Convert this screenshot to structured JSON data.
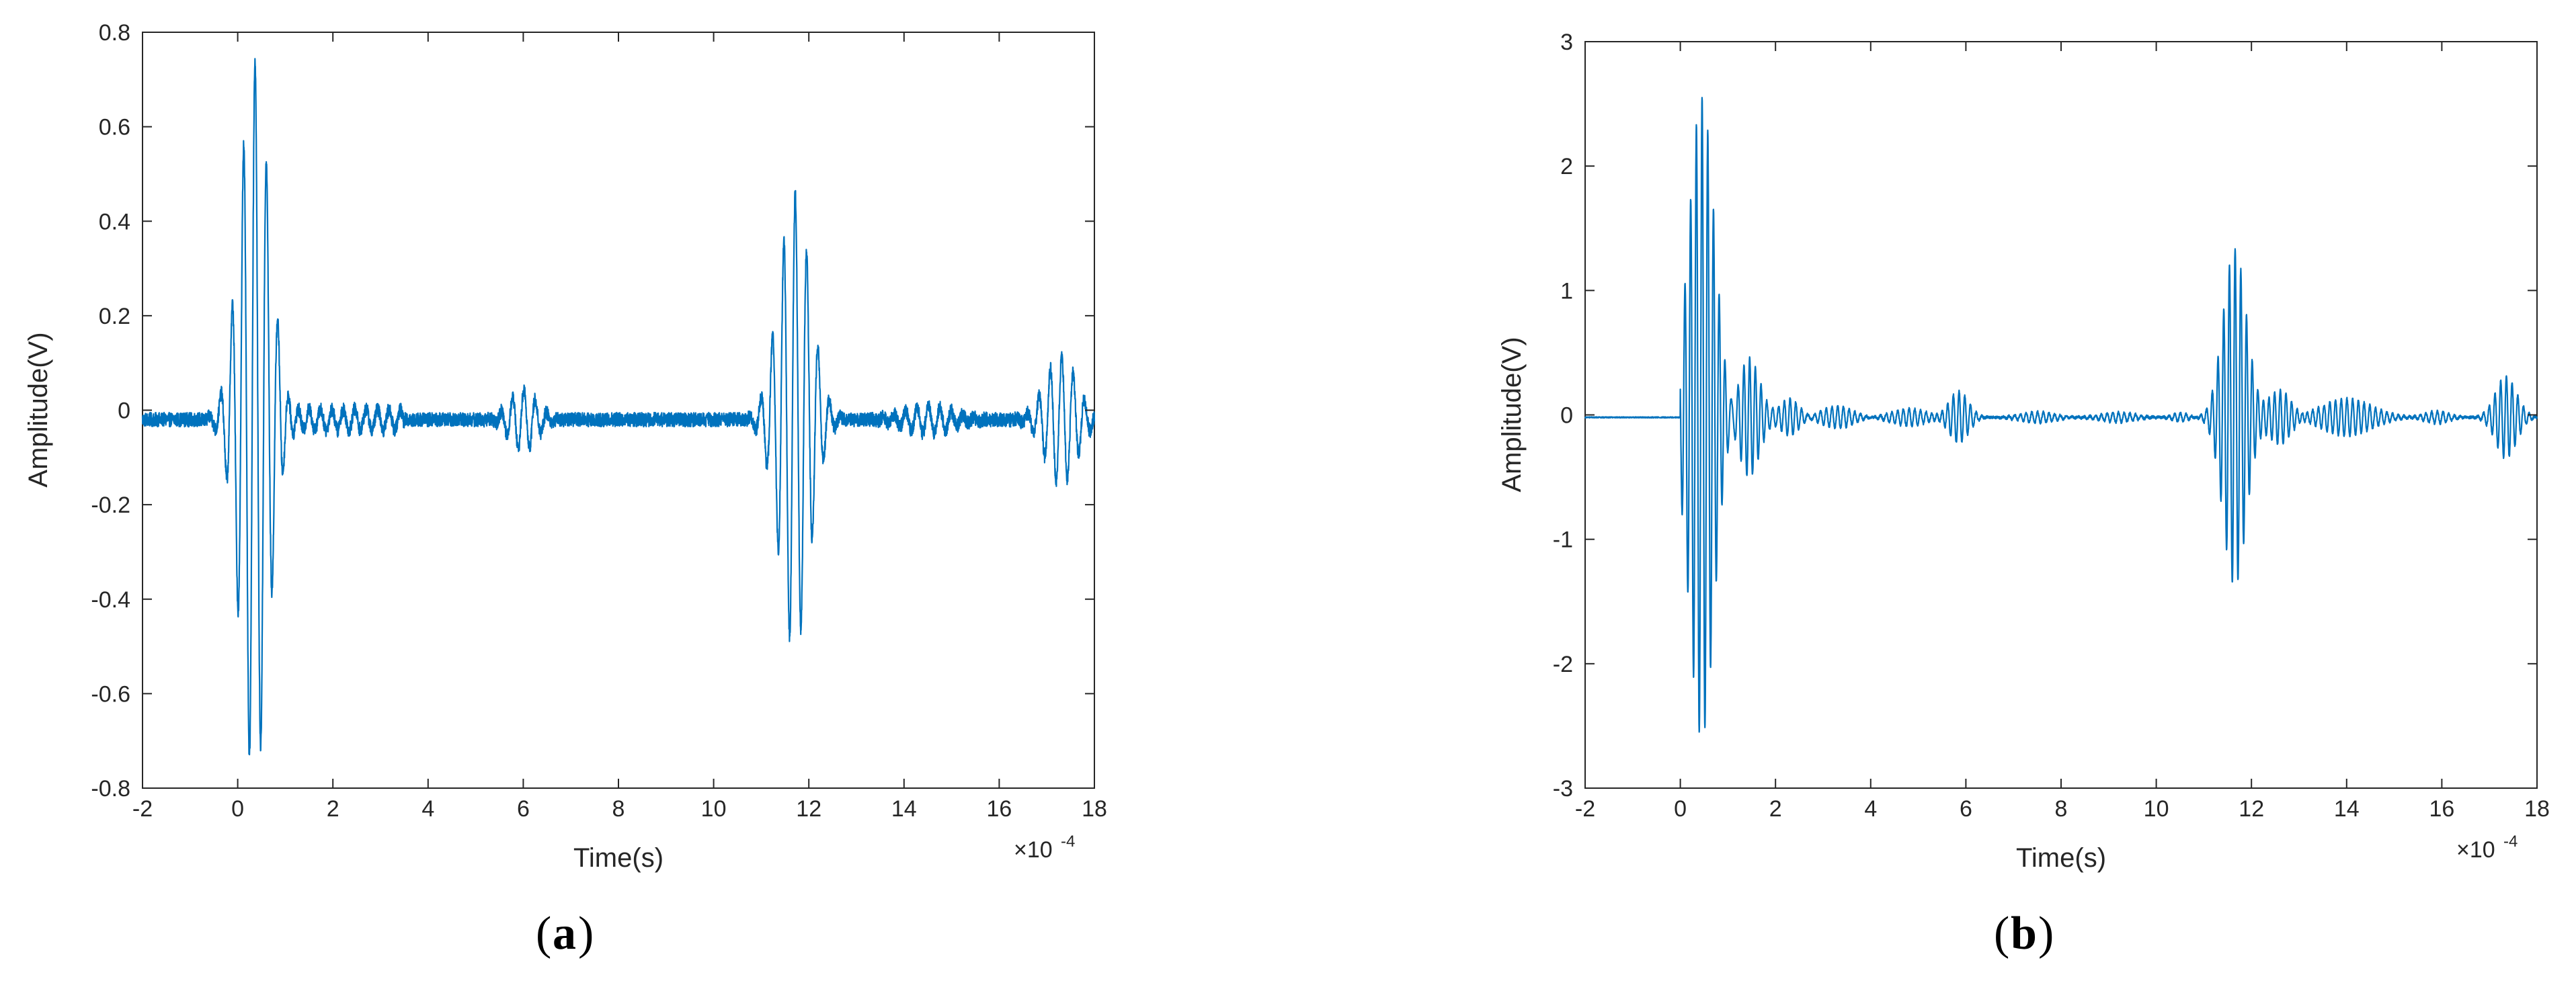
{
  "colors": {
    "signal": "#0072BD",
    "axis": "#262626",
    "background": "#ffffff"
  },
  "chart_data": [
    {
      "type": "line",
      "panel_label": "a",
      "xlabel": "Time(s)",
      "ylabel": "Amplitude(V)",
      "x_multiplier": "×10",
      "x_exponent": "-4",
      "xlim": [
        -2,
        18
      ],
      "ylim": [
        -0.8,
        0.8
      ],
      "xticks": [
        "-2",
        "0",
        "2",
        "4",
        "6",
        "8",
        "10",
        "12",
        "14",
        "16",
        "18"
      ],
      "yticks": [
        "-0.8",
        "-0.6",
        "-0.4",
        "-0.2",
        "0",
        "0.2",
        "0.4",
        "0.6",
        "0.8"
      ],
      "grid": false,
      "series": [
        {
          "baseline": -0.02,
          "noise_amplitude": 0.015,
          "packets": [
            {
              "center": 0.35,
              "half_width": 0.75,
              "peak": 0.76,
              "period": 0.24
            },
            {
              "center": 6.0,
              "half_width": 0.7,
              "peak": 0.065,
              "period": 0.24
            },
            {
              "center": 11.7,
              "half_width": 0.8,
              "peak": 0.48,
              "period": 0.24
            },
            {
              "center": 14.5,
              "half_width": 1.2,
              "peak": 0.03,
              "period": 0.24
            },
            {
              "center": 17.3,
              "half_width": 0.8,
              "peak": 0.135,
              "period": 0.24
            }
          ],
          "ringing": [
            {
              "start": 0.9,
              "end": 3.5,
              "peak": 0.022,
              "period": 0.24
            }
          ]
        }
      ]
    },
    {
      "type": "line",
      "panel_label": "b",
      "xlabel": "Time(s)",
      "ylabel": "Amplitude(V)",
      "x_multiplier": "×10",
      "x_exponent": "-4",
      "xlim": [
        -2,
        18
      ],
      "ylim": [
        -3,
        3
      ],
      "xticks": [
        "-2",
        "0",
        "2",
        "4",
        "6",
        "8",
        "10",
        "12",
        "14",
        "16",
        "18"
      ],
      "yticks": [
        "-3",
        "-2",
        "-1",
        "0",
        "1",
        "2",
        "3"
      ],
      "grid": false,
      "series": [
        {
          "baseline": -0.02,
          "noise_amplitude": 0.01,
          "start": 0.0,
          "packets": [
            {
              "center": 0.45,
              "half_width": 0.65,
              "peak": 2.58,
              "period": 0.12
            },
            {
              "center": 1.45,
              "half_width": 0.55,
              "peak": 0.48,
              "period": 0.12
            },
            {
              "center": 2.3,
              "half_width": 0.5,
              "peak": 0.15,
              "period": 0.12
            },
            {
              "center": 3.3,
              "half_width": 0.8,
              "peak": 0.09,
              "period": 0.12
            },
            {
              "center": 4.8,
              "half_width": 0.9,
              "peak": 0.07,
              "period": 0.12
            },
            {
              "center": 5.85,
              "half_width": 0.5,
              "peak": 0.21,
              "period": 0.12
            },
            {
              "center": 7.5,
              "half_width": 0.9,
              "peak": 0.045,
              "period": 0.12
            },
            {
              "center": 9.2,
              "half_width": 0.9,
              "peak": 0.04,
              "period": 0.12
            },
            {
              "center": 10.5,
              "half_width": 0.4,
              "peak": 0.035,
              "period": 0.12
            },
            {
              "center": 11.65,
              "half_width": 0.6,
              "peak": 1.36,
              "period": 0.12
            },
            {
              "center": 12.6,
              "half_width": 0.6,
              "peak": 0.22,
              "period": 0.12
            },
            {
              "center": 14.0,
              "half_width": 1.3,
              "peak": 0.15,
              "period": 0.12
            },
            {
              "center": 15.9,
              "half_width": 0.6,
              "peak": 0.05,
              "period": 0.12
            },
            {
              "center": 17.35,
              "half_width": 0.55,
              "peak": 0.33,
              "period": 0.12
            }
          ],
          "ringing": []
        }
      ]
    }
  ]
}
